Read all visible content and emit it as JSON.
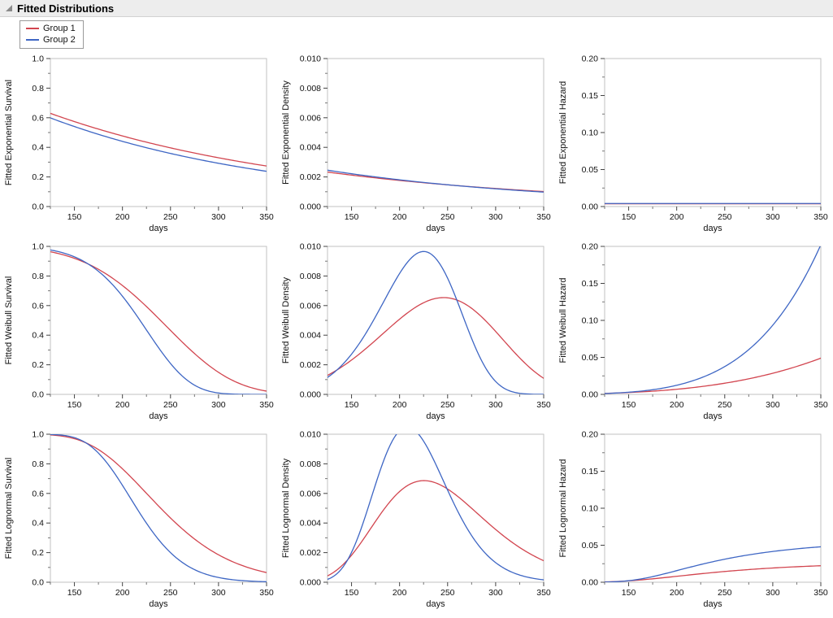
{
  "header": {
    "title": "Fitted Distributions"
  },
  "legend": {
    "items": [
      {
        "label": "Group 1",
        "color": "#d2454f"
      },
      {
        "label": "Group 2",
        "color": "#3e66c4"
      }
    ]
  },
  "chart_data": [
    {
      "id": "exponential-survival",
      "type": "line",
      "ylabel": "Fitted Exponential Survival",
      "xlabel": "days",
      "xlim": [
        125,
        350
      ],
      "x_ticks": [
        150,
        200,
        250,
        300,
        350
      ],
      "ylim": [
        0,
        1
      ],
      "y_ticks": [
        0,
        0.2,
        0.4,
        0.6,
        0.8,
        1
      ],
      "y_decimals": 1,
      "grid": false,
      "model": {
        "dist": "exponential",
        "func": "survival"
      },
      "x_sample": [
        125,
        150,
        175,
        200,
        225,
        250,
        275,
        300,
        325,
        350
      ],
      "series": [
        {
          "name": "Group 1",
          "color": "#d2454f",
          "params": {
            "lambda": 0.0037
          },
          "y_sample": [
            0.63,
            0.574,
            0.523,
            0.477,
            0.435,
            0.397,
            0.362,
            0.33,
            0.3,
            0.274
          ]
        },
        {
          "name": "Group 2",
          "color": "#3e66c4",
          "params": {
            "lambda": 0.0041
          },
          "y_sample": [
            0.599,
            0.541,
            0.488,
            0.44,
            0.398,
            0.359,
            0.324,
            0.292,
            0.264,
            0.238
          ]
        }
      ]
    },
    {
      "id": "exponential-density",
      "type": "line",
      "ylabel": "Fitted Exponential Density",
      "xlabel": "days",
      "xlim": [
        125,
        350
      ],
      "x_ticks": [
        150,
        200,
        250,
        300,
        350
      ],
      "ylim": [
        0,
        0.01
      ],
      "y_ticks": [
        0,
        0.002,
        0.004,
        0.006,
        0.008,
        0.01
      ],
      "y_decimals": 3,
      "grid": false,
      "model": {
        "dist": "exponential",
        "func": "density"
      },
      "x_sample": [
        125,
        150,
        175,
        200,
        225,
        250,
        275,
        300,
        325,
        350
      ],
      "series": [
        {
          "name": "Group 1",
          "color": "#d2454f",
          "params": {
            "lambda": 0.0037
          },
          "y_sample": [
            0.00233,
            0.00212,
            0.00194,
            0.00177,
            0.00161,
            0.00147,
            0.00134,
            0.00122,
            0.00111,
            0.00101
          ]
        },
        {
          "name": "Group 2",
          "color": "#3e66c4",
          "params": {
            "lambda": 0.0041
          },
          "y_sample": [
            0.00246,
            0.00222,
            0.002,
            0.00181,
            0.00163,
            0.00147,
            0.00133,
            0.0012,
            0.00108,
            0.00098
          ]
        }
      ]
    },
    {
      "id": "exponential-hazard",
      "type": "line",
      "ylabel": "Fitted Exponential Hazard",
      "xlabel": "days",
      "xlim": [
        125,
        350
      ],
      "x_ticks": [
        150,
        200,
        250,
        300,
        350
      ],
      "ylim": [
        0,
        0.2
      ],
      "y_ticks": [
        0,
        0.05,
        0.1,
        0.15,
        0.2
      ],
      "y_decimals": 2,
      "grid": false,
      "model": {
        "dist": "exponential",
        "func": "hazard"
      },
      "x_sample": [
        125,
        150,
        175,
        200,
        225,
        250,
        275,
        300,
        325,
        350
      ],
      "series": [
        {
          "name": "Group 1",
          "color": "#d2454f",
          "params": {
            "lambda": 0.0037
          },
          "y_sample": [
            0.0037,
            0.0037,
            0.0037,
            0.0037,
            0.0037,
            0.0037,
            0.0037,
            0.0037,
            0.0037,
            0.0037
          ]
        },
        {
          "name": "Group 2",
          "color": "#3e66c4",
          "params": {
            "lambda": 0.0041
          },
          "y_sample": [
            0.0041,
            0.0041,
            0.0041,
            0.0041,
            0.0041,
            0.0041,
            0.0041,
            0.0041,
            0.0041,
            0.0041
          ]
        }
      ]
    },
    {
      "id": "weibull-survival",
      "type": "line",
      "ylabel": "Fitted Weibull Survival",
      "xlabel": "days",
      "xlim": [
        125,
        350
      ],
      "x_ticks": [
        150,
        200,
        250,
        300,
        350
      ],
      "ylim": [
        0,
        1
      ],
      "y_ticks": [
        0,
        0.2,
        0.4,
        0.6,
        0.8,
        1
      ],
      "y_decimals": 1,
      "grid": false,
      "model": {
        "dist": "weibull",
        "func": "survival"
      },
      "x_sample": [
        125,
        150,
        175,
        200,
        225,
        250,
        275,
        300,
        325,
        350
      ],
      "series": [
        {
          "name": "Group 1",
          "color": "#d2454f",
          "params": {
            "alpha": 260,
            "beta": 4.5
          },
          "y_sample": [
            0.964,
            0.919,
            0.845,
            0.736,
            0.594,
            0.433,
            0.276,
            0.149,
            0.065,
            0.022
          ]
        },
        {
          "name": "Group 2",
          "color": "#3e66c4",
          "params": {
            "alpha": 232,
            "beta": 6
          },
          "y_sample": [
            0.976,
            0.93,
            0.832,
            0.663,
            0.435,
            0.209,
            0.062,
            0.009,
            0.001,
            0.0
          ]
        }
      ]
    },
    {
      "id": "weibull-density",
      "type": "line",
      "ylabel": "Fitted Weibull Density",
      "xlabel": "days",
      "xlim": [
        125,
        350
      ],
      "x_ticks": [
        150,
        200,
        250,
        300,
        350
      ],
      "ylim": [
        0,
        0.01
      ],
      "y_ticks": [
        0,
        0.002,
        0.004,
        0.006,
        0.008,
        0.01
      ],
      "y_decimals": 3,
      "grid": false,
      "model": {
        "dist": "weibull",
        "func": "density"
      },
      "x_sample": [
        125,
        150,
        175,
        200,
        225,
        250,
        275,
        300,
        325,
        350
      ],
      "series": [
        {
          "name": "Group 1",
          "color": "#d2454f",
          "params": {
            "alpha": 260,
            "beta": 4.5
          },
          "y_sample": [
            0.00128,
            0.00232,
            0.00366,
            0.00508,
            0.00619,
            0.00653,
            0.00582,
            0.00425,
            0.00246,
            0.00108
          ]
        },
        {
          "name": "Group 2",
          "color": "#3e66c4",
          "params": {
            "alpha": 232,
            "beta": 6
          },
          "y_sample": [
            0.00115,
            0.00272,
            0.00525,
            0.00817,
            0.00966,
            0.00785,
            0.00378,
            0.00087,
            7e-05,
            0.0
          ]
        }
      ]
    },
    {
      "id": "weibull-hazard",
      "type": "line",
      "ylabel": "Fitted Weibull Hazard",
      "xlabel": "days",
      "xlim": [
        125,
        350
      ],
      "x_ticks": [
        150,
        200,
        250,
        300,
        350
      ],
      "ylim": [
        0,
        0.2
      ],
      "y_ticks": [
        0,
        0.05,
        0.1,
        0.15,
        0.2
      ],
      "y_decimals": 2,
      "grid": false,
      "model": {
        "dist": "weibull",
        "func": "hazard"
      },
      "x_sample": [
        125,
        150,
        175,
        200,
        225,
        250,
        275,
        300,
        325,
        350
      ],
      "series": [
        {
          "name": "Group 1",
          "color": "#d2454f",
          "params": {
            "alpha": 260,
            "beta": 4.5
          },
          "y_sample": [
            0.0013,
            0.0025,
            0.0043,
            0.0069,
            0.0104,
            0.0151,
            0.0211,
            0.0286,
            0.0378,
            0.049
          ]
        },
        {
          "name": "Group 2",
          "color": "#3e66c4",
          "params": {
            "alpha": 232,
            "beta": 6
          },
          "y_sample": [
            0.0012,
            0.0029,
            0.0063,
            0.0123,
            0.0222,
            0.0376,
            0.0605,
            0.0935,
            0.1396,
            0.2021
          ]
        }
      ]
    },
    {
      "id": "lognormal-survival",
      "type": "line",
      "ylabel": "Fitted Lognormal Survival",
      "xlabel": "days",
      "xlim": [
        125,
        350
      ],
      "x_ticks": [
        150,
        200,
        250,
        300,
        350
      ],
      "ylim": [
        0,
        1
      ],
      "y_ticks": [
        0,
        0.2,
        0.4,
        0.6,
        0.8,
        1
      ],
      "y_decimals": 1,
      "grid": false,
      "model": {
        "dist": "lognormal",
        "func": "survival"
      },
      "x_sample": [
        125,
        150,
        175,
        200,
        225,
        250,
        275,
        300,
        325,
        350
      ],
      "series": [
        {
          "name": "Group 1",
          "color": "#d2454f",
          "params": {
            "mu": 5.48,
            "sigma": 0.25
          },
          "y_sample": [
            0.995,
            0.97,
            0.896,
            0.766,
            0.601,
            0.426,
            0.292,
            0.185,
            0.112,
            0.065
          ]
        },
        {
          "name": "Group 2",
          "color": "#3e66c4",
          "params": {
            "mu": 5.37,
            "sigma": 0.18
          },
          "y_sample": [
            0.999,
            0.977,
            0.873,
            0.655,
            0.399,
            0.2,
            0.085,
            0.032,
            0.011,
            0.003
          ]
        }
      ]
    },
    {
      "id": "lognormal-density",
      "type": "line",
      "ylabel": "Fitted Lognormal Density",
      "xlabel": "days",
      "xlim": [
        125,
        350
      ],
      "x_ticks": [
        150,
        200,
        250,
        300,
        350
      ],
      "ylim": [
        0,
        0.01
      ],
      "y_ticks": [
        0,
        0.002,
        0.004,
        0.006,
        0.008,
        0.01
      ],
      "y_decimals": 3,
      "grid": false,
      "model": {
        "dist": "lognormal",
        "func": "density"
      },
      "x_sample": [
        125,
        150,
        175,
        200,
        225,
        250,
        275,
        300,
        325,
        350
      ],
      "series": [
        {
          "name": "Group 1",
          "color": "#d2454f",
          "params": {
            "mu": 5.48,
            "sigma": 0.25
          },
          "y_sample": [
            0.00043,
            0.00183,
            0.00412,
            0.00613,
            0.00686,
            0.00627,
            0.005,
            0.00356,
            0.00235,
            0.00145
          ]
        },
        {
          "name": "Group 2",
          "color": "#3e66c4",
          "params": {
            "mu": 5.37,
            "sigma": 0.18
          },
          "y_sample": [
            0.00019,
            0.00201,
            0.00661,
            0.01024,
            0.00953,
            0.00622,
            0.00315,
            0.00132,
            0.00049,
            0.00016
          ]
        }
      ]
    },
    {
      "id": "lognormal-hazard",
      "type": "line",
      "ylabel": "Fitted Lognormal Hazard",
      "xlabel": "days",
      "xlim": [
        125,
        350
      ],
      "x_ticks": [
        150,
        200,
        250,
        300,
        350
      ],
      "ylim": [
        0,
        0.2
      ],
      "y_ticks": [
        0,
        0.05,
        0.1,
        0.15,
        0.2
      ],
      "y_decimals": 2,
      "grid": false,
      "model": {
        "dist": "lognormal",
        "func": "hazard"
      },
      "x_sample": [
        125,
        150,
        175,
        200,
        225,
        250,
        275,
        300,
        325,
        350
      ],
      "series": [
        {
          "name": "Group 1",
          "color": "#d2454f",
          "params": {
            "mu": 5.48,
            "sigma": 0.25
          },
          "y_sample": [
            0.0004,
            0.0019,
            0.0046,
            0.008,
            0.0114,
            0.0147,
            0.0171,
            0.0192,
            0.0209,
            0.0223
          ]
        },
        {
          "name": "Group 2",
          "color": "#3e66c4",
          "params": {
            "mu": 5.37,
            "sigma": 0.18
          },
          "y_sample": [
            0.0002,
            0.0021,
            0.0076,
            0.0156,
            0.0239,
            0.0311,
            0.0369,
            0.0416,
            0.0454,
            0.0474
          ]
        }
      ]
    }
  ]
}
